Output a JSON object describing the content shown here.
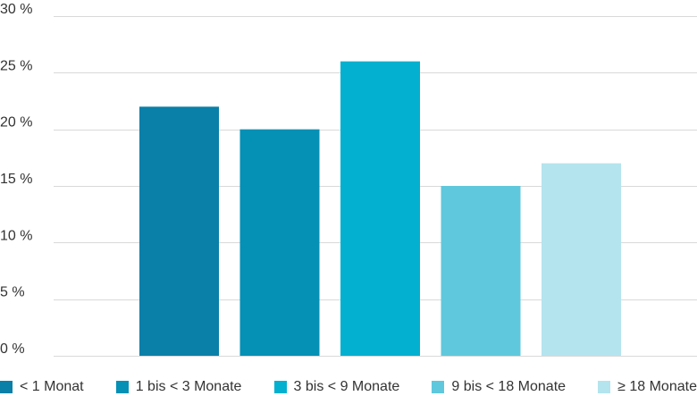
{
  "chart_data": {
    "type": "bar",
    "categories": [
      "< 1 Monat",
      "1 bis < 3 Monate",
      "3 bis < 9 Monate",
      "9 bis < 18 Monate",
      "≥ 18 Monate"
    ],
    "values": [
      22,
      20,
      26,
      15,
      17
    ],
    "unit": "%",
    "ylim": [
      0,
      30
    ],
    "yticks": [
      0,
      5,
      10,
      15,
      20,
      25,
      30
    ],
    "ytick_labels": [
      "0 %",
      "5 %",
      "10 %",
      "15 %",
      "20 %",
      "25 %",
      "30 %"
    ],
    "grid": true,
    "legend_position": "bottom",
    "colors": [
      "#0a7fa8",
      "#0590b5",
      "#04b0cf",
      "#5fc8dc",
      "#b4e4ee"
    ],
    "title": "",
    "xlabel": "",
    "ylabel": ""
  }
}
